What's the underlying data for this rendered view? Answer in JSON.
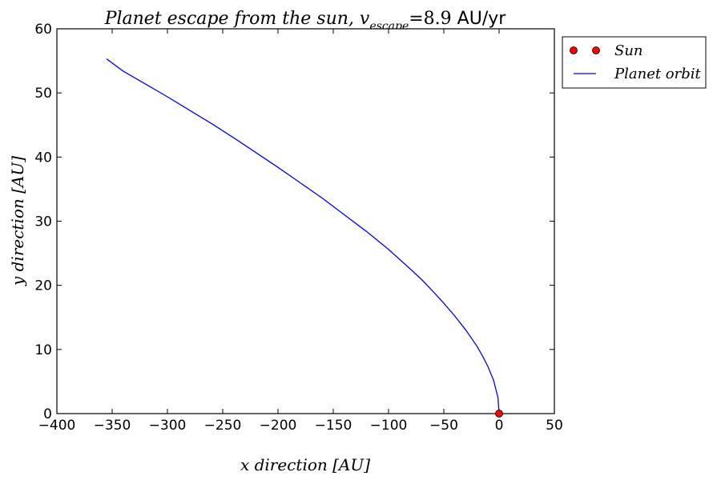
{
  "chart_data": {
    "type": "line",
    "title": {
      "main": "Planet escape from the sun, ",
      "v": "v",
      "subscript": "escape",
      "equals": "=8.9",
      "unit": " AU/yr"
    },
    "xlabel": "x direction [AU]",
    "ylabel": "y direction [AU]",
    "xlim": [
      -400,
      50
    ],
    "ylim": [
      0,
      60
    ],
    "x_ticks": [
      -400,
      -350,
      -300,
      -250,
      -200,
      -150,
      -100,
      -50,
      0,
      50
    ],
    "y_ticks": [
      0,
      10,
      20,
      30,
      40,
      50,
      60
    ],
    "grid": false,
    "legend": {
      "placement": "outside-top-right",
      "entries": [
        {
          "label": "Sun",
          "marker": "circle",
          "color": "#ff0000"
        },
        {
          "label": "Planet orbit",
          "marker": "line",
          "color": "#0000ff"
        }
      ]
    },
    "series": [
      {
        "name": "Sun",
        "style": "marker",
        "color": "#ff0000",
        "x": [
          0
        ],
        "y": [
          0
        ]
      },
      {
        "name": "Planet orbit",
        "style": "line",
        "color": "#0000ff",
        "x": [
          0,
          -1,
          -5,
          -10,
          -15,
          -20,
          -30,
          -40,
          -50,
          -60,
          -70,
          -80,
          -100,
          -120,
          -140,
          -160,
          -180,
          -200,
          -220,
          -240,
          -260,
          -280,
          -300,
          -320,
          -340,
          -355
        ],
        "y": [
          0,
          2.5,
          5.2,
          7.3,
          9.0,
          10.5,
          13.0,
          15.2,
          17.2,
          19.1,
          20.9,
          22.5,
          25.6,
          28.4,
          31.0,
          33.6,
          36.0,
          38.4,
          40.7,
          43.0,
          45.2,
          47.3,
          49.4,
          51.4,
          53.4,
          55.3
        ]
      }
    ]
  }
}
